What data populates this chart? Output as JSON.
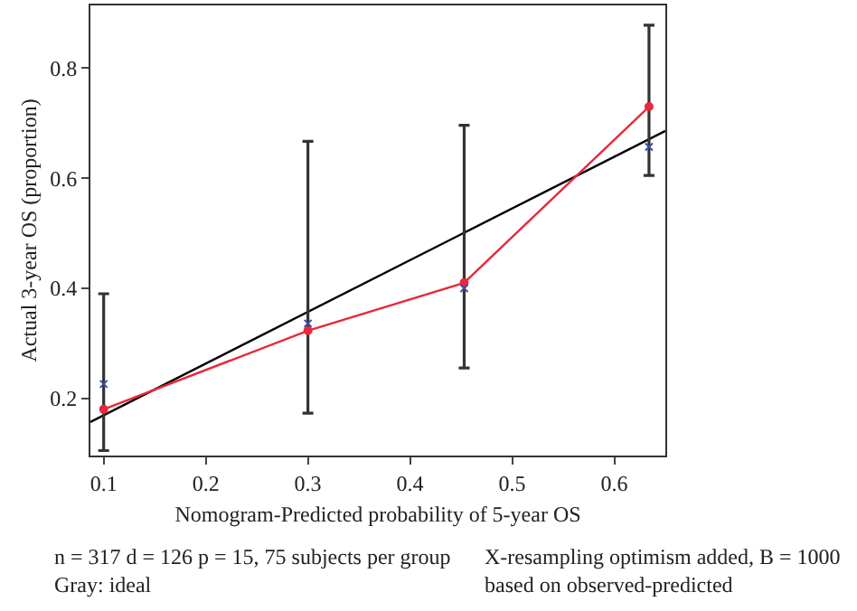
{
  "chart_data": {
    "type": "line",
    "xlabel": "Nomogram-Predicted probability of 5-year OS",
    "ylabel": "Actual 3-year OS (proportion)",
    "xlim": [
      0.087,
      0.65
    ],
    "xticks": [
      0.1,
      0.2,
      0.3,
      0.4,
      0.5,
      0.6
    ],
    "ylim": [
      0.096,
      0.914
    ],
    "yticks": [
      0.2,
      0.4,
      0.6,
      0.8
    ],
    "grid": false,
    "series": [
      {
        "color": "#000000",
        "x": [
          0.087,
          0.65
        ],
        "values": [
          0.157,
          0.686
        ],
        "marker": "none"
      },
      {
        "color": "#e8283c",
        "x": [
          0.1,
          0.3,
          0.453,
          0.634
        ],
        "values": [
          0.18,
          0.323,
          0.41,
          0.73
        ],
        "marker": "circle",
        "errors": [
          [
            0.105,
            0.39
          ],
          [
            0.173,
            0.667
          ],
          [
            0.255,
            0.696
          ],
          [
            0.605,
            0.878
          ]
        ]
      },
      {
        "type": "scatter",
        "color": "#3c4fa0",
        "x": [
          0.1,
          0.3,
          0.453,
          0.634
        ],
        "values": [
          0.226,
          0.336,
          0.4,
          0.657
        ],
        "marker": "cross"
      }
    ],
    "annotations": [
      "n = 317 d = 126 p = 15, 75 subjects per group\nGray: ideal",
      "X-resampling optimism added, B = 1000\nbased on observed-predicted"
    ]
  }
}
